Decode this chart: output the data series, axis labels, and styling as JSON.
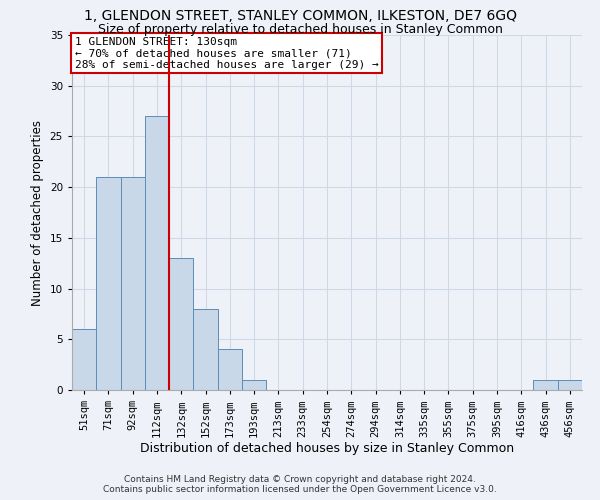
{
  "title": "1, GLENDON STREET, STANLEY COMMON, ILKESTON, DE7 6GQ",
  "subtitle": "Size of property relative to detached houses in Stanley Common",
  "xlabel": "Distribution of detached houses by size in Stanley Common",
  "ylabel": "Number of detached properties",
  "bin_labels": [
    "51sqm",
    "71sqm",
    "92sqm",
    "112sqm",
    "132sqm",
    "152sqm",
    "173sqm",
    "193sqm",
    "213sqm",
    "233sqm",
    "254sqm",
    "274sqm",
    "294sqm",
    "314sqm",
    "335sqm",
    "355sqm",
    "375sqm",
    "395sqm",
    "416sqm",
    "436sqm",
    "456sqm"
  ],
  "bar_heights": [
    6,
    21,
    21,
    27,
    13,
    8,
    4,
    1,
    0,
    0,
    0,
    0,
    0,
    0,
    0,
    0,
    0,
    0,
    0,
    1,
    1
  ],
  "bar_color": "#c8d8e8",
  "bar_edge_color": "#5b8db8",
  "property_line_color": "#cc0000",
  "annotation_text": "1 GLENDON STREET: 130sqm\n← 70% of detached houses are smaller (71)\n28% of semi-detached houses are larger (29) →",
  "annotation_box_color": "#ffffff",
  "annotation_box_edge_color": "#cc0000",
  "ylim": [
    0,
    35
  ],
  "yticks": [
    0,
    5,
    10,
    15,
    20,
    25,
    30,
    35
  ],
  "grid_color": "#d0d8e8",
  "background_color": "#eef2f8",
  "footer_line1": "Contains HM Land Registry data © Crown copyright and database right 2024.",
  "footer_line2": "Contains public sector information licensed under the Open Government Licence v3.0.",
  "title_fontsize": 10,
  "subtitle_fontsize": 9,
  "xlabel_fontsize": 9,
  "ylabel_fontsize": 8.5,
  "tick_fontsize": 7.5,
  "footer_fontsize": 6.5
}
